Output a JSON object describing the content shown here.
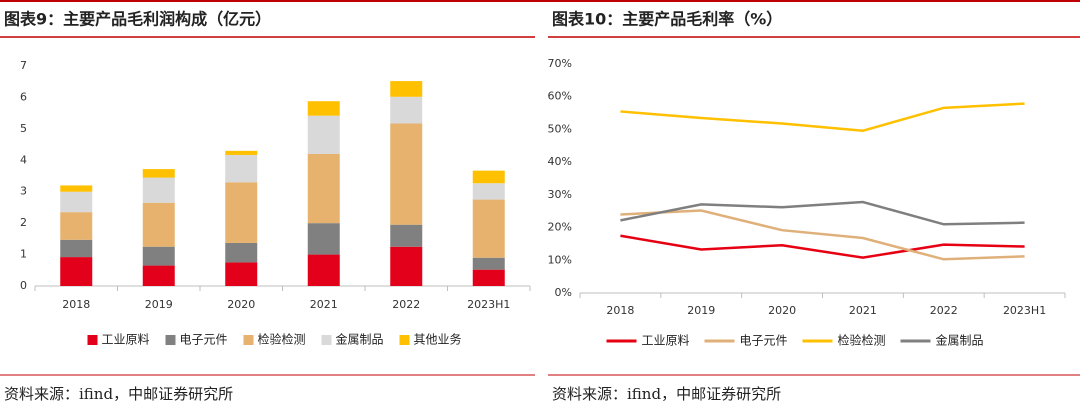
{
  "chart_data": [
    {
      "type": "bar",
      "stacked": true,
      "title": "图表9：主要产品毛利润构成（亿元）",
      "categories": [
        "2018",
        "2019",
        "2020",
        "2021",
        "2022",
        "2023H1"
      ],
      "series": [
        {
          "name": "工业原料",
          "color": "#e3001b",
          "values": [
            0.92,
            0.65,
            0.75,
            1.0,
            1.25,
            0.52
          ]
        },
        {
          "name": "电子元件",
          "color": "#808080",
          "values": [
            0.55,
            0.6,
            0.62,
            1.0,
            0.7,
            0.38
          ]
        },
        {
          "name": "检验检测",
          "color": "#e6b26e",
          "values": [
            0.88,
            1.4,
            1.93,
            2.2,
            3.22,
            1.85
          ]
        },
        {
          "name": "金属制品",
          "color": "#d9d9d9",
          "values": [
            0.65,
            0.8,
            0.87,
            1.22,
            0.85,
            0.52
          ]
        },
        {
          "name": "其他业务",
          "color": "#ffc000",
          "values": [
            0.2,
            0.27,
            0.13,
            0.46,
            0.5,
            0.4
          ]
        }
      ],
      "ylim": [
        0,
        7
      ],
      "yticks": [
        0,
        1,
        2,
        3,
        4,
        5,
        6,
        7
      ],
      "grid": false,
      "legend": "bottom",
      "source": "资料来源：ifind，中邮证券研究所"
    },
    {
      "type": "line",
      "title": "图表10：主要产品毛利率（%）",
      "categories": [
        "2018",
        "2019",
        "2020",
        "2021",
        "2022",
        "2023H1"
      ],
      "series": [
        {
          "name": "工业原料",
          "color": "#e60012",
          "values": [
            17.5,
            13.3,
            14.6,
            10.8,
            14.8,
            14.2
          ]
        },
        {
          "name": "电子元件",
          "color": "#e0b07a",
          "values": [
            24.0,
            25.2,
            19.2,
            16.8,
            10.3,
            11.2
          ]
        },
        {
          "name": "检验检测",
          "color": "#ffc000",
          "values": [
            55.5,
            53.5,
            51.8,
            49.6,
            56.6,
            57.9
          ]
        },
        {
          "name": "金属制品",
          "color": "#7f7f7f",
          "values": [
            22.2,
            27.1,
            26.2,
            27.8,
            21.0,
            21.5
          ]
        }
      ],
      "ylim": [
        0,
        70
      ],
      "yticks": [
        {
          "value": 0,
          "label": "0%"
        },
        {
          "value": 10,
          "label": "10%"
        },
        {
          "value": 20,
          "label": "20%"
        },
        {
          "value": 30,
          "label": "30%"
        },
        {
          "value": 40,
          "label": "40%"
        },
        {
          "value": 50,
          "label": "50%"
        },
        {
          "value": 60,
          "label": "60%"
        },
        {
          "value": 70,
          "label": "70%"
        }
      ],
      "grid": false,
      "legend": "bottom",
      "source": "资料来源：ifind，中邮证券研究所"
    }
  ]
}
